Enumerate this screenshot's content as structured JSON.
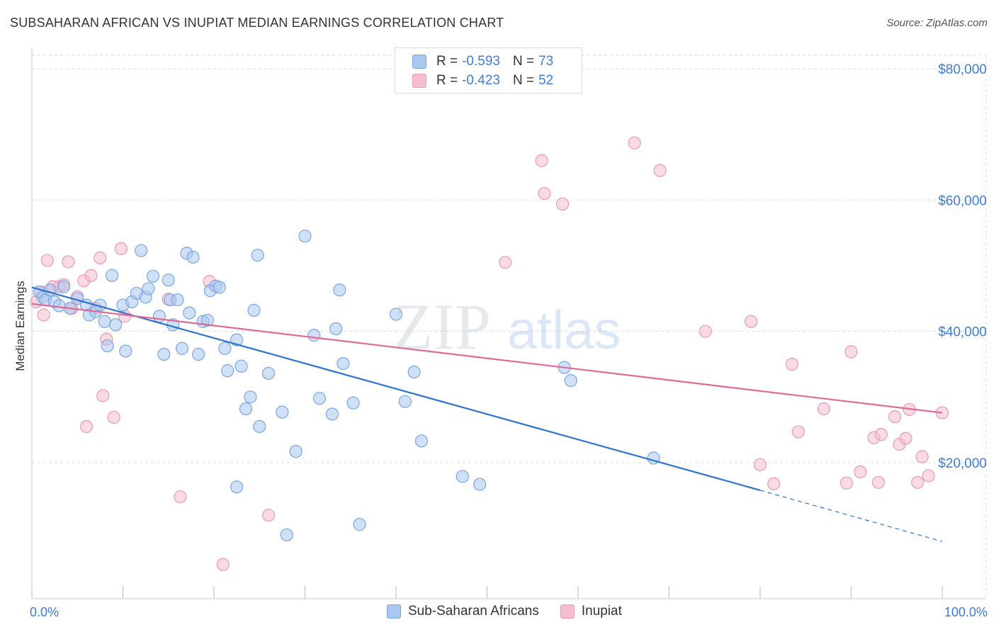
{
  "header": {
    "title": "SUBSAHARAN AFRICAN VS INUPIAT MEDIAN EARNINGS CORRELATION CHART",
    "source": "Source: ZipAtlas.com"
  },
  "watermark": {
    "zip": "ZIP",
    "atlas": "atlas"
  },
  "legend_top": {
    "rows": [
      {
        "r_label": "R =",
        "r_value": "-0.593",
        "n_label": "N =",
        "n_value": "73"
      },
      {
        "r_label": "R =",
        "r_value": "-0.423",
        "n_label": "N =",
        "n_value": "52"
      }
    ]
  },
  "legend_bottom": {
    "items": [
      {
        "label": "Sub-Saharan Africans"
      },
      {
        "label": "Inupiat"
      }
    ]
  },
  "colors": {
    "blue_fill": "#a9c8f0",
    "blue_stroke": "#7aa7de",
    "blue_line": "#2f74d0",
    "pink_fill": "#f6bcd0",
    "pink_stroke": "#ea9ab7",
    "pink_line": "#e06a96",
    "axis_label": "#3d7dd8",
    "grid": "#dddddd"
  },
  "chart_data": {
    "type": "scatter",
    "title": "SUBSAHARAN AFRICAN VS INUPIAT MEDIAN EARNINGS CORRELATION CHART",
    "xlabel": "",
    "ylabel": "Median Earnings",
    "xlim": [
      0,
      100
    ],
    "ylim": [
      0,
      80000
    ],
    "x_tick_labels": [
      "0.0%",
      "100.0%"
    ],
    "y_ticks": [
      20000,
      40000,
      60000,
      80000
    ],
    "y_tick_labels": [
      "$20,000",
      "$40,000",
      "$60,000",
      "$80,000"
    ],
    "grid": true,
    "legend_position": "top-center",
    "series": [
      {
        "name": "Sub-Saharan Africans",
        "color": "#a9c8f0",
        "r": -0.593,
        "n": 73,
        "trend": {
          "x0": 0,
          "y0": 46700,
          "x1": 80,
          "y1": 15800,
          "dashed_to_x": 100,
          "dashed_to_y": 8000
        },
        "points": [
          [
            0.8,
            46000
          ],
          [
            1.2,
            45200
          ],
          [
            1.5,
            44800
          ],
          [
            2.0,
            46300
          ],
          [
            2.5,
            44500
          ],
          [
            3.0,
            43900
          ],
          [
            3.5,
            46800
          ],
          [
            4.2,
            43500
          ],
          [
            5.0,
            45000
          ],
          [
            6.0,
            44000
          ],
          [
            6.3,
            42500
          ],
          [
            7.0,
            43000
          ],
          [
            7.5,
            44000
          ],
          [
            8.0,
            41500
          ],
          [
            8.3,
            37800
          ],
          [
            8.8,
            48500
          ],
          [
            9.2,
            41000
          ],
          [
            10.0,
            44000
          ],
          [
            10.3,
            37000
          ],
          [
            11.0,
            44500
          ],
          [
            11.5,
            45800
          ],
          [
            12.0,
            52300
          ],
          [
            12.5,
            45200
          ],
          [
            12.8,
            46500
          ],
          [
            13.3,
            48400
          ],
          [
            14.0,
            42300
          ],
          [
            14.5,
            36500
          ],
          [
            15.0,
            47800
          ],
          [
            15.2,
            44800
          ],
          [
            15.5,
            41000
          ],
          [
            16.0,
            44800
          ],
          [
            16.5,
            37400
          ],
          [
            17.0,
            51900
          ],
          [
            17.3,
            42800
          ],
          [
            17.7,
            51300
          ],
          [
            18.3,
            36500
          ],
          [
            18.8,
            41500
          ],
          [
            19.3,
            41700
          ],
          [
            19.6,
            46200
          ],
          [
            20.2,
            46900
          ],
          [
            20.6,
            46700
          ],
          [
            21.2,
            37400
          ],
          [
            21.5,
            34000
          ],
          [
            22.5,
            38700
          ],
          [
            23.0,
            34700
          ],
          [
            23.5,
            28200
          ],
          [
            24.0,
            30000
          ],
          [
            24.4,
            43200
          ],
          [
            24.8,
            51600
          ],
          [
            26.0,
            33600
          ],
          [
            27.5,
            27700
          ],
          [
            29.0,
            21700
          ],
          [
            30.0,
            54500
          ],
          [
            31.0,
            39400
          ],
          [
            31.6,
            29800
          ],
          [
            33.0,
            27400
          ],
          [
            33.4,
            40400
          ],
          [
            33.8,
            46300
          ],
          [
            34.2,
            35100
          ],
          [
            35.3,
            29100
          ],
          [
            36.0,
            10600
          ],
          [
            28.0,
            9000
          ],
          [
            22.5,
            16300
          ],
          [
            40.0,
            42600
          ],
          [
            41.0,
            29300
          ],
          [
            42.0,
            33800
          ],
          [
            42.8,
            23300
          ],
          [
            47.3,
            17900
          ],
          [
            49.2,
            16700
          ],
          [
            58.5,
            34500
          ],
          [
            59.2,
            32500
          ],
          [
            68.3,
            20700
          ],
          [
            25.0,
            25500
          ]
        ]
      },
      {
        "name": "Inupiat",
        "color": "#f6bcd0",
        "r": -0.423,
        "n": 52,
        "trend": {
          "x0": 0,
          "y0": 44200,
          "x1": 100,
          "y1": 27600
        },
        "points": [
          [
            0.5,
            44500
          ],
          [
            1.0,
            46000
          ],
          [
            1.3,
            42500
          ],
          [
            1.7,
            50800
          ],
          [
            2.3,
            46800
          ],
          [
            3.0,
            46800
          ],
          [
            3.5,
            47100
          ],
          [
            4.0,
            50600
          ],
          [
            4.4,
            43500
          ],
          [
            5.0,
            45300
          ],
          [
            5.7,
            47700
          ],
          [
            6.0,
            25500
          ],
          [
            6.5,
            48500
          ],
          [
            7.0,
            43500
          ],
          [
            7.5,
            51200
          ],
          [
            7.8,
            30200
          ],
          [
            8.2,
            38800
          ],
          [
            9.0,
            26900
          ],
          [
            9.8,
            52600
          ],
          [
            10.2,
            42300
          ],
          [
            15.0,
            44900
          ],
          [
            16.3,
            14800
          ],
          [
            19.5,
            47600
          ],
          [
            21.0,
            4500
          ],
          [
            26.0,
            12000
          ],
          [
            52.0,
            50500
          ],
          [
            56.0,
            66000
          ],
          [
            56.3,
            61000
          ],
          [
            58.3,
            59400
          ],
          [
            66.2,
            68700
          ],
          [
            69.0,
            64500
          ],
          [
            74.0,
            40000
          ],
          [
            79.0,
            41500
          ],
          [
            80.0,
            19700
          ],
          [
            81.5,
            16800
          ],
          [
            83.5,
            35000
          ],
          [
            84.2,
            24700
          ],
          [
            87.0,
            28200
          ],
          [
            89.5,
            16900
          ],
          [
            90.0,
            36900
          ],
          [
            91.0,
            18600
          ],
          [
            92.5,
            23800
          ],
          [
            93.0,
            17000
          ],
          [
            93.3,
            24300
          ],
          [
            94.8,
            27000
          ],
          [
            95.3,
            22800
          ],
          [
            96.0,
            23700
          ],
          [
            96.4,
            28100
          ],
          [
            97.3,
            17000
          ],
          [
            97.8,
            20900
          ],
          [
            98.5,
            18000
          ],
          [
            100.0,
            27600
          ]
        ]
      }
    ]
  }
}
